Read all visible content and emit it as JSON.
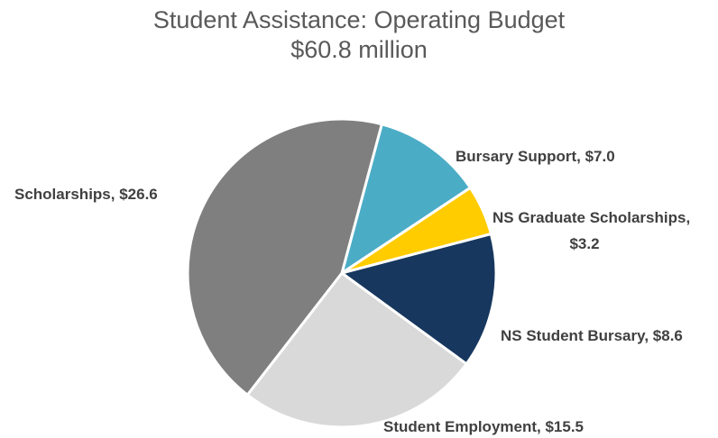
{
  "chart_data": {
    "type": "pie",
    "title": "Student Assistance: Operating Budget",
    "subtitle": "$60.8 million",
    "series": [
      {
        "values": [
          {
            "label": "Bursary Support",
            "value": 7.0,
            "display": "$7.0",
            "color": "#4bacc6"
          },
          {
            "label": "NS Graduate Scholarships",
            "value": 3.2,
            "display": "$3.2",
            "color": "#ffcc00"
          },
          {
            "label": "NS Student Bursary",
            "value": 8.6,
            "display": "$8.6",
            "color": "#17375e"
          },
          {
            "label": "Student Employment",
            "value": 15.5,
            "display": "$15.5",
            "color": "#d9d9d9"
          },
          {
            "label": "Scholarships",
            "value": 26.6,
            "display": "$26.6",
            "color": "#7f7f7f"
          }
        ]
      }
    ],
    "start_angle_deg": 15
  }
}
